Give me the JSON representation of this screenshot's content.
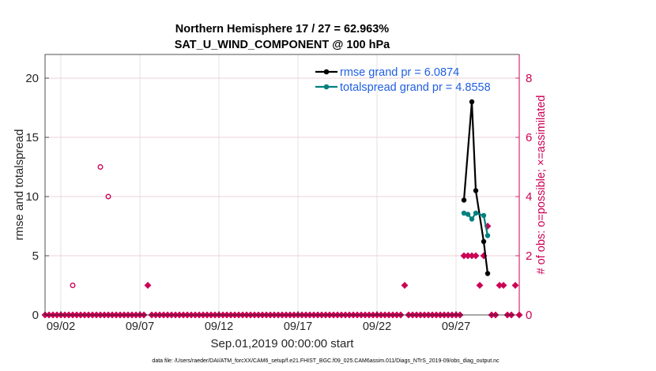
{
  "chart_data": {
    "type": "line",
    "title_line1": "Northern Hemisphere 17 / 27 = 62.963%",
    "title_line2": "SAT_U_WIND_COMPONENT @ 100 hPa",
    "xlabel": "Sep.01,2019 00:00:00 start",
    "ylabel_left": "rmse and totalspread",
    "ylabel_right": "# of obs: o=possible; ×=assimilated",
    "footnote": "data file: /Users/raeder/DAI/ATM_forcXX/CAM6_setup/f.e21.FHIST_BGC.f09_025.CAM6assim.011/Diags_NTrS_2019-09/obs_diag_output.nc",
    "x_range_days": [
      0,
      30
    ],
    "ylim_left": [
      0,
      22
    ],
    "ylim_right": [
      0,
      8.8
    ],
    "x_ticks": [
      {
        "day": 1,
        "label": "09/02"
      },
      {
        "day": 6,
        "label": "09/07"
      },
      {
        "day": 11,
        "label": "09/12"
      },
      {
        "day": 16,
        "label": "09/17"
      },
      {
        "day": 21,
        "label": "09/22"
      },
      {
        "day": 26,
        "label": "09/27"
      }
    ],
    "left_ticks": [
      "0",
      "5",
      "10",
      "15",
      "20"
    ],
    "right_ticks": [
      "0",
      "2",
      "4",
      "6",
      "8"
    ],
    "series": [
      {
        "name": "rmse grand pr = 6.0874",
        "color": "#000000",
        "x": [
          26.5,
          27.0,
          27.25,
          27.75,
          28.0
        ],
        "values": [
          9.7,
          18.0,
          10.5,
          6.2,
          3.5
        ]
      },
      {
        "name": "totalspread grand pr = 4.8558",
        "color": "#008080",
        "x": [
          26.5,
          26.75,
          27.0,
          27.25,
          27.75,
          28.0
        ],
        "values": [
          8.6,
          8.5,
          8.1,
          8.6,
          8.4,
          6.7
        ]
      }
    ],
    "obs_possible": {
      "color": "#cc0055",
      "x": [
        1.75,
        3.5,
        4.0
      ],
      "values": [
        1,
        5,
        4
      ]
    },
    "obs_assimilated": {
      "color": "#cc0055",
      "x_days_start": 0.0,
      "x_days_step": 0.25,
      "nonzero": [
        {
          "day": 6.5,
          "value": 1
        },
        {
          "day": 22.75,
          "value": 1
        },
        {
          "day": 26.5,
          "value": 2
        },
        {
          "day": 26.75,
          "value": 2
        },
        {
          "day": 27.0,
          "value": 2
        },
        {
          "day": 27.25,
          "value": 2
        },
        {
          "day": 27.5,
          "value": 1
        },
        {
          "day": 27.75,
          "value": 2
        },
        {
          "day": 28.0,
          "value": 3
        },
        {
          "day": 28.75,
          "value": 1
        },
        {
          "day": 29.0,
          "value": 1
        },
        {
          "day": 29.75,
          "value": 1
        }
      ]
    }
  }
}
